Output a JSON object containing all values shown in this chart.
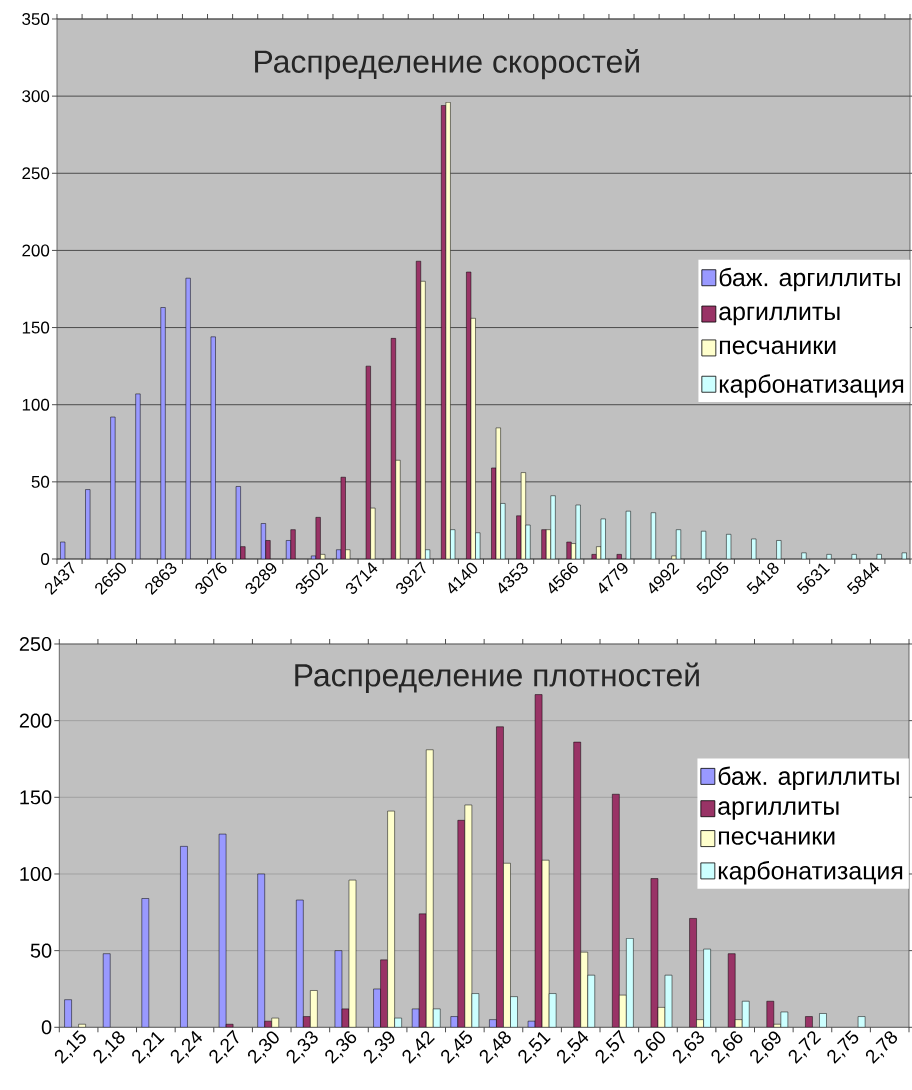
{
  "chart_data": [
    {
      "type": "bar",
      "title": "Распределение скоростей",
      "categories": [
        "2437",
        null,
        "2650",
        null,
        "2863",
        null,
        "3076",
        null,
        "3289",
        null,
        "3502",
        null,
        "3714",
        null,
        "3927",
        null,
        "4140",
        null,
        "4353",
        null,
        "4566",
        null,
        "4779",
        null,
        "4992",
        null,
        "5205",
        null,
        "5418",
        null,
        "5631",
        null,
        "5844",
        null
      ],
      "series": [
        {
          "name": "баж. аргиллиты",
          "color": "#9999ff",
          "values": [
            11,
            45,
            92,
            107,
            163,
            182,
            144,
            47,
            23,
            12,
            2,
            6,
            null,
            null,
            null,
            null,
            null,
            null,
            null,
            null,
            null,
            null,
            null,
            null,
            null,
            null,
            null,
            null,
            null,
            null,
            null,
            null,
            null,
            null
          ]
        },
        {
          "name": "аргиллиты",
          "color": "#993366",
          "values": [
            null,
            null,
            null,
            null,
            null,
            null,
            null,
            8,
            12,
            19,
            27,
            53,
            125,
            143,
            193,
            294,
            186,
            59,
            28,
            19,
            11,
            3,
            3,
            null,
            null,
            null,
            null,
            null,
            null,
            null,
            null,
            null,
            null,
            null
          ]
        },
        {
          "name": "песчаники",
          "color": "#ffffcc",
          "values": [
            null,
            null,
            null,
            null,
            null,
            null,
            null,
            null,
            null,
            null,
            3,
            6,
            33,
            64,
            180,
            296,
            156,
            85,
            56,
            19,
            10,
            8,
            null,
            null,
            2,
            null,
            null,
            null,
            null,
            null,
            null,
            null,
            null,
            null
          ]
        },
        {
          "name": "карбонатизация",
          "color": "#ccffff",
          "values": [
            null,
            null,
            null,
            null,
            null,
            null,
            null,
            null,
            null,
            null,
            null,
            null,
            null,
            null,
            6,
            19,
            17,
            36,
            22,
            41,
            35,
            26,
            31,
            30,
            19,
            18,
            16,
            13,
            12,
            4,
            3,
            3,
            3,
            4
          ]
        }
      ],
      "ylim": [
        0,
        350
      ],
      "yticks": [
        0,
        50,
        100,
        150,
        200,
        250,
        300,
        350
      ],
      "grid": "y",
      "legend": "right"
    },
    {
      "type": "bar",
      "title": "Распределение плотностей",
      "categories": [
        "2,15",
        "2,18",
        "2,21",
        "2,24",
        "2,27",
        "2,30",
        "2,33",
        "2,36",
        "2,39",
        "2,42",
        "2,45",
        "2,48",
        "2,51",
        "2,54",
        "2,57",
        "2,60",
        "2,63",
        "2,66",
        "2,69",
        "2,72",
        "2,75",
        "2,78"
      ],
      "series": [
        {
          "name": "баж. аргиллиты",
          "color": "#9999ff",
          "values": [
            18,
            48,
            84,
            118,
            126,
            100,
            83,
            50,
            25,
            12,
            7,
            5,
            4,
            null,
            null,
            null,
            null,
            null,
            null,
            null,
            null,
            null
          ]
        },
        {
          "name": "аргиллиты",
          "color": "#993366",
          "values": [
            null,
            null,
            null,
            null,
            2,
            4,
            7,
            12,
            44,
            74,
            135,
            196,
            217,
            186,
            152,
            97,
            71,
            48,
            17,
            7,
            null,
            null
          ]
        },
        {
          "name": "песчаники",
          "color": "#ffffcc",
          "values": [
            2,
            null,
            null,
            null,
            null,
            6,
            24,
            96,
            141,
            181,
            145,
            107,
            109,
            49,
            21,
            13,
            5,
            5,
            2,
            null,
            null,
            null
          ]
        },
        {
          "name": "карбонатизация",
          "color": "#ccffff",
          "values": [
            null,
            null,
            null,
            null,
            null,
            null,
            null,
            null,
            6,
            12,
            22,
            20,
            22,
            34,
            58,
            34,
            51,
            17,
            10,
            9,
            7,
            null
          ]
        }
      ],
      "ylim": [
        0,
        250
      ],
      "yticks": [
        0,
        50,
        100,
        150,
        200,
        250
      ],
      "grid": "y",
      "legend": "right"
    }
  ]
}
